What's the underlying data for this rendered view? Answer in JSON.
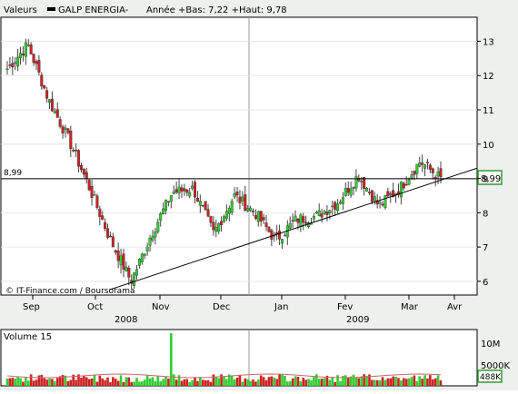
{
  "header": {
    "prefix": "Valeurs",
    "series_name": "GALP ENERGIA-",
    "stats": "Année +Bas: 7,22 +Haut: 9,78"
  },
  "credit": "© IT-Finance.com / Boursorama",
  "level_line": {
    "value": 8.99,
    "label_left": "8,99",
    "label_right": "8,99"
  },
  "months": [
    "Sep",
    "Oct",
    "Nov",
    "Dec",
    "Jan",
    "Fev",
    "Mar",
    "Avr"
  ],
  "years": [
    "2008",
    "2009"
  ],
  "y_ticks": [
    "13",
    "12",
    "11",
    "10",
    "9",
    "8",
    "7",
    "6"
  ],
  "volume_panel": {
    "title": "Volume 15",
    "ticks": [
      "10M",
      "5000K"
    ],
    "last_label": "488K"
  },
  "colors": {
    "up": "#33cc33",
    "down": "#cc2222",
    "highlight": "#339933"
  },
  "chart_data": {
    "type": "candlestick",
    "ylim": [
      5.6,
      13.7
    ],
    "x_categories": [
      "Sep",
      "Oct",
      "Nov",
      "Dec",
      "Jan",
      "Fev",
      "Mar",
      "Avr"
    ],
    "close_anchors": [
      {
        "month": "Sep",
        "close": 12.2
      },
      {
        "month": "Sep",
        "close": 12.9
      },
      {
        "month": "Sep",
        "close": 11.3
      },
      {
        "month": "Sep",
        "close": 10.1
      },
      {
        "month": "Sep",
        "close": 8.7
      },
      {
        "month": "Oct",
        "close": 7.2
      },
      {
        "month": "Oct",
        "close": 6.0
      },
      {
        "month": "Oct",
        "close": 7.4
      },
      {
        "month": "Oct",
        "close": 8.6
      },
      {
        "month": "Nov",
        "close": 8.7
      },
      {
        "month": "Nov",
        "close": 7.4
      },
      {
        "month": "Nov",
        "close": 8.5
      },
      {
        "month": "Dec",
        "close": 8.0
      },
      {
        "month": "Dec",
        "close": 7.2
      },
      {
        "month": "Jan",
        "close": 7.8
      },
      {
        "month": "Jan",
        "close": 7.9
      },
      {
        "month": "Fev",
        "close": 8.3
      },
      {
        "month": "Fev",
        "close": 9.1
      },
      {
        "month": "Fev",
        "close": 8.2
      },
      {
        "month": "Mar",
        "close": 8.7
      },
      {
        "month": "Mar",
        "close": 9.5
      },
      {
        "month": "Mar",
        "close": 8.99
      }
    ],
    "trendline": {
      "from": {
        "month": "Oct",
        "value": 5.75
      },
      "to": {
        "month": "Avr",
        "value": 9.3
      }
    },
    "volume_spike": {
      "month": "Nov",
      "value": 14000000
    },
    "volume_last": 488000
  }
}
